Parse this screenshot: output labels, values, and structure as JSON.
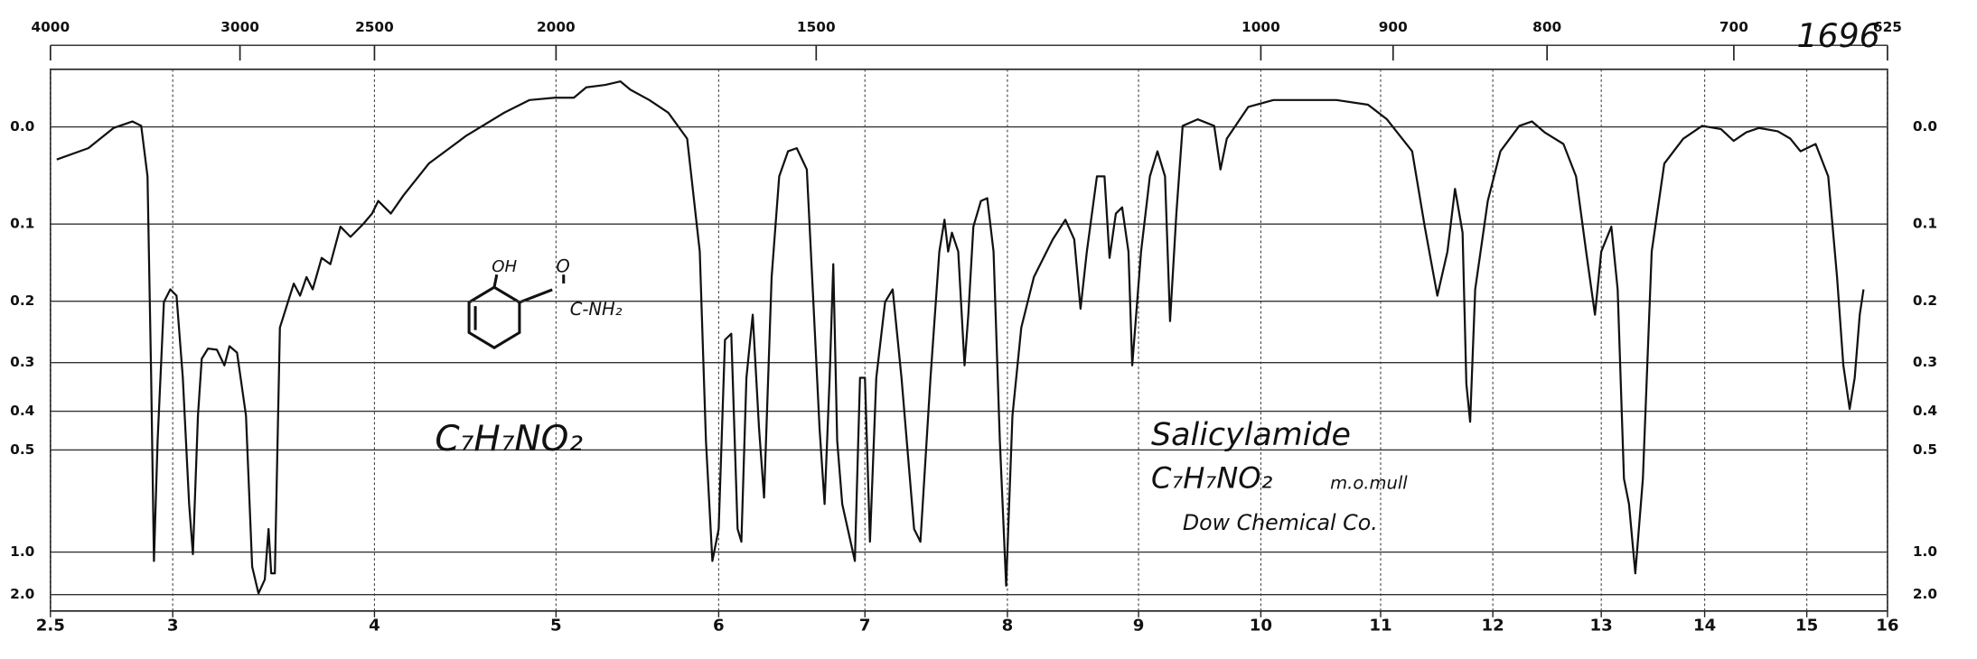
{
  "chart_data": {
    "type": "line",
    "x": [
      2.526,
      2.655,
      2.758,
      2.835,
      2.871,
      2.897,
      2.912,
      2.923,
      2.938,
      2.964,
      2.99,
      3.019,
      3.05,
      3.081,
      3.1,
      3.125,
      3.144,
      3.175,
      3.219,
      3.256,
      3.281,
      3.319,
      3.363,
      3.394,
      3.425,
      3.456,
      3.475,
      3.488,
      3.506,
      3.531,
      3.6,
      3.631,
      3.663,
      3.694,
      3.738,
      3.781,
      3.831,
      3.881,
      3.944,
      3.988,
      4.021,
      4.09,
      4.16,
      4.299,
      4.507,
      4.715,
      4.854,
      4.993,
      5.109,
      5.186,
      5.302,
      5.395,
      5.457,
      5.574,
      5.69,
      5.806,
      5.884,
      5.922,
      5.961,
      6.0,
      6.043,
      6.086,
      6.129,
      6.155,
      6.19,
      6.233,
      6.276,
      6.31,
      6.362,
      6.414,
      6.474,
      6.534,
      6.603,
      6.647,
      6.69,
      6.724,
      6.759,
      6.784,
      6.81,
      6.845,
      6.931,
      6.966,
      7.0,
      7.035,
      7.08,
      7.142,
      7.195,
      7.257,
      7.345,
      7.389,
      7.46,
      7.522,
      7.558,
      7.584,
      7.611,
      7.655,
      7.699,
      7.726,
      7.761,
      7.814,
      7.858,
      7.903,
      7.947,
      7.991,
      8.038,
      8.106,
      8.202,
      8.346,
      8.442,
      8.51,
      8.558,
      8.606,
      8.683,
      8.74,
      8.779,
      8.827,
      8.875,
      8.923,
      8.952,
      9.021,
      9.093,
      9.155,
      9.216,
      9.258,
      9.309,
      9.361,
      9.485,
      9.619,
      9.67,
      9.722,
      9.897,
      10.105,
      10.632,
      10.895,
      11.056,
      11.281,
      11.393,
      11.506,
      11.596,
      11.663,
      11.73,
      11.764,
      11.798,
      11.843,
      11.955,
      12.07,
      12.244,
      12.36,
      12.477,
      12.651,
      12.767,
      12.86,
      12.942,
      13.0,
      13.098,
      13.159,
      13.22,
      13.268,
      13.329,
      13.402,
      13.488,
      13.61,
      13.793,
      13.976,
      14.16,
      14.284,
      14.407,
      14.531,
      14.716,
      14.84,
      14.938,
      15.109,
      15.266,
      15.375,
      15.453,
      15.531,
      15.594,
      15.656,
      15.703
    ],
    "values": [
      0.031,
      0.02,
      0.001,
      -0.005,
      -0.001,
      0.048,
      0.329,
      1.09,
      0.474,
      0.201,
      0.183,
      0.192,
      0.329,
      0.695,
      1.02,
      0.41,
      0.293,
      0.275,
      0.277,
      0.305,
      0.271,
      0.282,
      0.41,
      1.16,
      1.9,
      1.38,
      0.827,
      1.26,
      1.26,
      0.24,
      0.175,
      0.192,
      0.166,
      0.183,
      0.141,
      0.149,
      0.103,
      0.115,
      0.1,
      0.088,
      0.074,
      0.088,
      0.068,
      0.035,
      0.008,
      -0.013,
      -0.024,
      -0.026,
      -0.026,
      -0.035,
      -0.037,
      -0.04,
      -0.033,
      -0.024,
      -0.013,
      0.011,
      0.133,
      0.474,
      1.09,
      0.827,
      0.26,
      0.25,
      0.827,
      0.914,
      0.329,
      0.22,
      0.441,
      0.667,
      0.166,
      0.048,
      0.023,
      0.02,
      0.041,
      0.201,
      0.441,
      0.695,
      0.329,
      0.149,
      0.474,
      0.695,
      1.09,
      0.329,
      0.329,
      0.914,
      0.329,
      0.201,
      0.183,
      0.329,
      0.827,
      0.914,
      0.329,
      0.133,
      0.095,
      0.133,
      0.11,
      0.133,
      0.305,
      0.22,
      0.103,
      0.074,
      0.071,
      0.133,
      0.474,
      1.54,
      0.41,
      0.24,
      0.166,
      0.118,
      0.095,
      0.118,
      0.211,
      0.133,
      0.048,
      0.048,
      0.141,
      0.088,
      0.081,
      0.133,
      0.305,
      0.133,
      0.048,
      0.023,
      0.048,
      0.23,
      0.088,
      -0.001,
      -0.007,
      -0.001,
      0.041,
      0.011,
      -0.018,
      -0.024,
      -0.024,
      -0.02,
      -0.007,
      0.023,
      0.103,
      0.192,
      0.133,
      0.061,
      0.11,
      0.341,
      0.425,
      0.183,
      0.074,
      0.023,
      -0.001,
      -0.005,
      0.005,
      0.016,
      0.048,
      0.133,
      0.22,
      0.133,
      0.103,
      0.183,
      0.593,
      0.695,
      1.26,
      0.593,
      0.133,
      0.035,
      0.011,
      -0.001,
      0.002,
      0.013,
      0.005,
      0.001,
      0.004,
      0.011,
      0.023,
      0.016,
      0.048,
      0.166,
      0.305,
      0.395,
      0.329,
      0.22,
      0.183
    ],
    "color": "#111111",
    "xlim": [
      2.5,
      16
    ],
    "xticks": [
      2.5,
      3,
      4,
      5,
      6,
      7,
      8,
      9,
      10,
      11,
      12,
      13,
      14,
      15,
      16
    ],
    "x2ticks": [
      4000,
      3000,
      2500,
      2000,
      1500,
      1000,
      900,
      800,
      700,
      625
    ],
    "ylim": [
      -0.05,
      2
    ],
    "yticks": [
      {
        "value": 0,
        "label": "0.0"
      },
      0.1,
      0.2,
      0.3,
      0.4,
      0.5,
      {
        "value": 1,
        "label": "1.0"
      },
      {
        "value": 2,
        "label": "2.0"
      }
    ],
    "grid": true,
    "annotations": [
      "1696",
      "OH",
      "O",
      "C-NH₂",
      "C₇H₇NO₂",
      "Salicylamide",
      "C₇H₇NO₂",
      "m.o.mull",
      "Dow Chemical Co."
    ]
  }
}
